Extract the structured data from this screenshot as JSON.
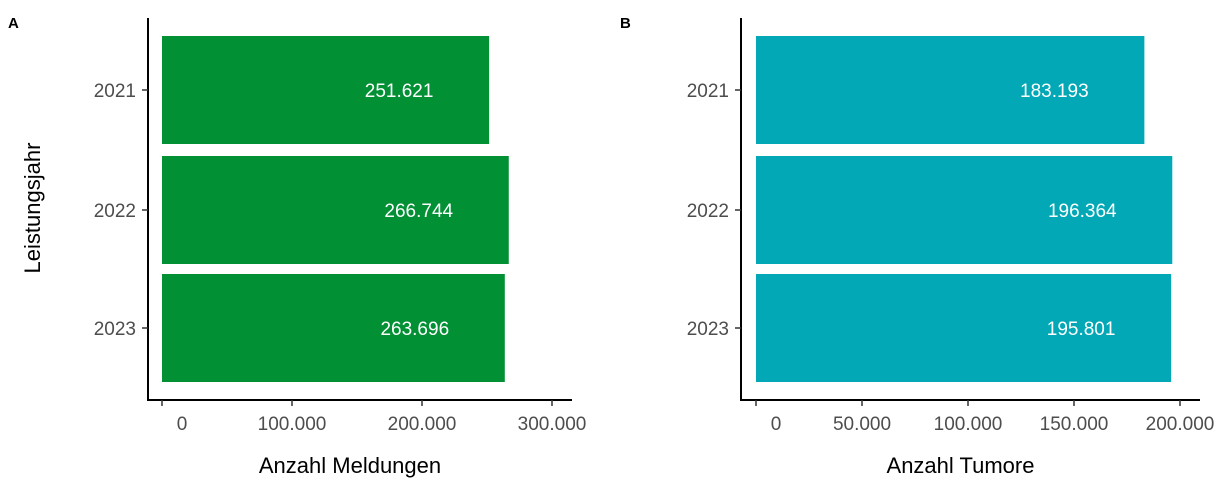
{
  "y_axis_title": "Leistungsjahr",
  "chart_data": [
    {
      "type": "bar",
      "orientation": "horizontal",
      "panel": "A",
      "categories": [
        "2021",
        "2022",
        "2023"
      ],
      "values": [
        251621,
        266744,
        263696
      ],
      "value_labels": [
        "251.621",
        "266.744",
        "263.696"
      ],
      "xlabel": "Anzahl Meldungen",
      "ylabel": "Leistungsjahr",
      "xticks": [
        0,
        100000,
        200000,
        300000
      ],
      "xtick_labels": [
        "0",
        "100.000",
        "200.000",
        "300.000"
      ],
      "xlim": [
        0,
        320000
      ],
      "color": "#029034",
      "grid": false
    },
    {
      "type": "bar",
      "orientation": "horizontal",
      "panel": "B",
      "categories": [
        "2021",
        "2022",
        "2023"
      ],
      "values": [
        183193,
        196364,
        195801
      ],
      "value_labels": [
        "183.193",
        "196.364",
        "195.801"
      ],
      "xlabel": "Anzahl Tumore",
      "ylabel": "",
      "xticks": [
        0,
        50000,
        100000,
        150000,
        200000
      ],
      "xtick_labels": [
        "0",
        "50.000",
        "100.000",
        "150.000",
        "200.000"
      ],
      "xlim": [
        0,
        205000
      ],
      "color": "#02a8b5",
      "grid": false
    }
  ]
}
